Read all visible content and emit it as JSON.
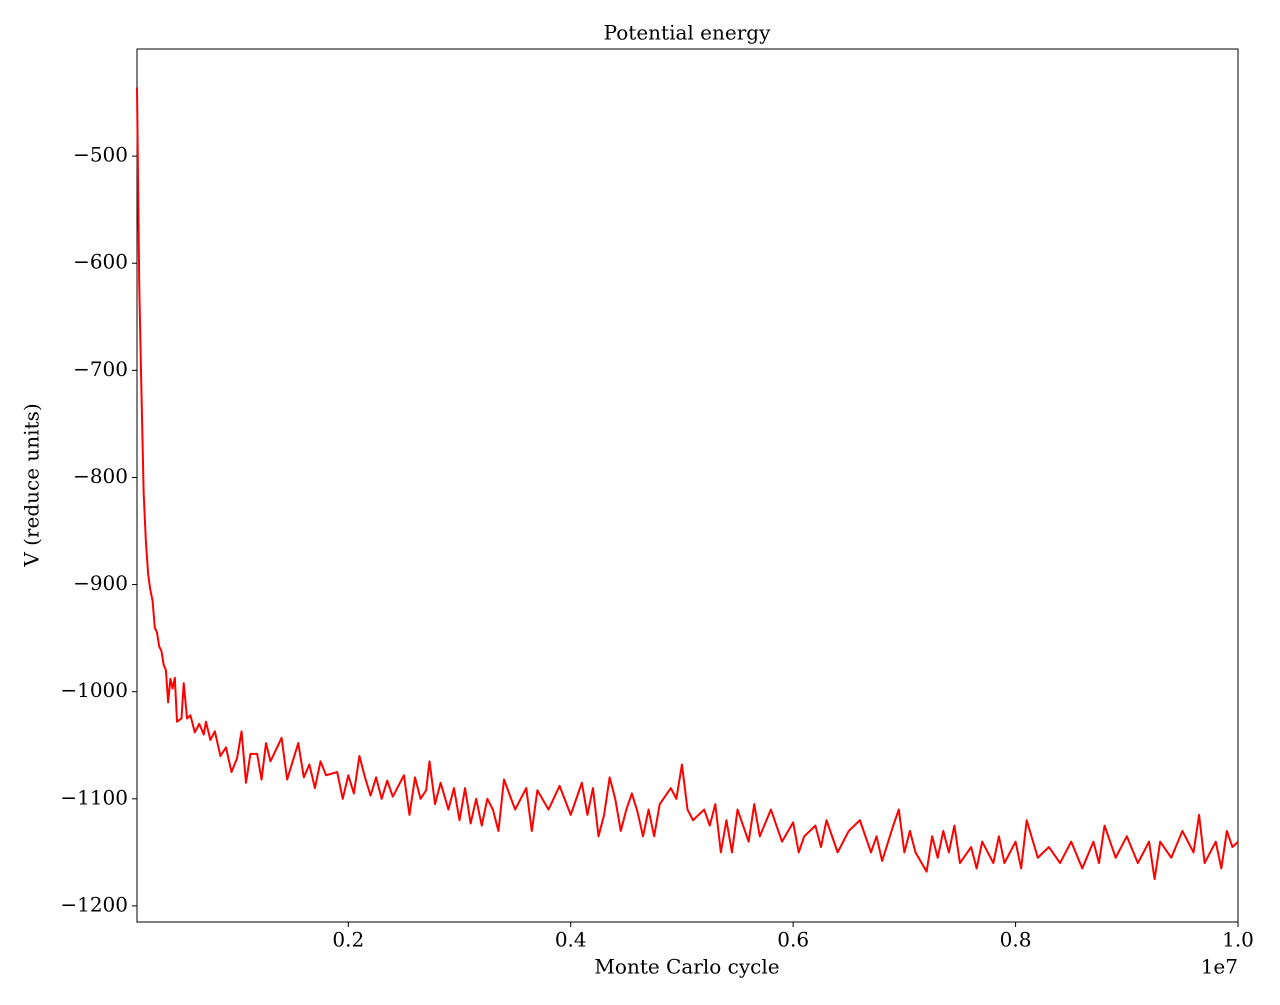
{
  "chart_data": {
    "type": "line",
    "title": "Potential energy",
    "xlabel": "Monte Carlo cycle",
    "ylabel": "V (reduce units)",
    "x_offset_label": "1e7",
    "x": [
      0.01,
      0.012,
      0.014,
      0.016,
      0.018,
      0.02,
      0.022,
      0.024,
      0.026,
      0.028,
      0.03,
      0.032,
      0.034,
      0.036,
      0.038,
      0.04,
      0.042,
      0.044,
      0.046,
      0.05,
      0.052,
      0.055,
      0.058,
      0.062,
      0.066,
      0.07,
      0.072,
      0.076,
      0.08,
      0.085,
      0.09,
      0.095,
      0.1,
      0.104,
      0.108,
      0.112,
      0.118,
      0.122,
      0.126,
      0.13,
      0.136,
      0.14,
      0.145,
      0.15,
      0.155,
      0.16,
      0.165,
      0.17,
      0.175,
      0.18,
      0.19,
      0.195,
      0.2,
      0.205,
      0.21,
      0.215,
      0.22,
      0.225,
      0.23,
      0.235,
      0.24,
      0.25,
      0.255,
      0.26,
      0.265,
      0.27,
      0.273,
      0.278,
      0.283,
      0.29,
      0.295,
      0.3,
      0.305,
      0.31,
      0.315,
      0.32,
      0.325,
      0.33,
      0.335,
      0.34,
      0.35,
      0.36,
      0.365,
      0.37,
      0.38,
      0.39,
      0.4,
      0.41,
      0.415,
      0.42,
      0.425,
      0.43,
      0.435,
      0.44,
      0.445,
      0.45,
      0.455,
      0.46,
      0.465,
      0.47,
      0.475,
      0.48,
      0.49,
      0.495,
      0.5,
      0.505,
      0.51,
      0.52,
      0.525,
      0.53,
      0.535,
      0.54,
      0.545,
      0.55,
      0.56,
      0.565,
      0.57,
      0.58,
      0.59,
      0.6,
      0.605,
      0.61,
      0.62,
      0.625,
      0.63,
      0.64,
      0.65,
      0.66,
      0.67,
      0.675,
      0.68,
      0.69,
      0.695,
      0.7,
      0.705,
      0.71,
      0.72,
      0.725,
      0.73,
      0.735,
      0.74,
      0.745,
      0.75,
      0.76,
      0.765,
      0.77,
      0.78,
      0.785,
      0.79,
      0.8,
      0.805,
      0.81,
      0.82,
      0.83,
      0.84,
      0.85,
      0.86,
      0.87,
      0.875,
      0.88,
      0.89,
      0.9,
      0.91,
      0.92,
      0.925,
      0.93,
      0.94,
      0.95,
      0.96,
      0.965,
      0.97,
      0.98,
      0.985,
      0.99,
      0.995,
      1.0
    ],
    "series": [
      {
        "name": "V",
        "color": "#ff0000",
        "values": [
          -436,
          -620,
          -720,
          -815,
          -860,
          -890,
          -905,
          -915,
          -940,
          -945,
          -958,
          -962,
          -975,
          -980,
          -1010,
          -988,
          -997,
          -987,
          -1028,
          -1025,
          -992,
          -1025,
          -1022,
          -1038,
          -1030,
          -1040,
          -1028,
          -1045,
          -1037,
          -1060,
          -1052,
          -1075,
          -1062,
          -1037,
          -1085,
          -1058,
          -1058,
          -1082,
          -1048,
          -1065,
          -1052,
          -1043,
          -1082,
          -1065,
          -1048,
          -1080,
          -1068,
          -1090,
          -1065,
          -1078,
          -1075,
          -1100,
          -1078,
          -1095,
          -1060,
          -1080,
          -1097,
          -1080,
          -1100,
          -1083,
          -1098,
          -1078,
          -1115,
          -1080,
          -1100,
          -1092,
          -1065,
          -1105,
          -1085,
          -1110,
          -1090,
          -1120,
          -1090,
          -1123,
          -1100,
          -1125,
          -1100,
          -1110,
          -1130,
          -1082,
          -1110,
          -1090,
          -1130,
          -1092,
          -1110,
          -1088,
          -1115,
          -1085,
          -1115,
          -1090,
          -1135,
          -1115,
          -1080,
          -1100,
          -1130,
          -1110,
          -1095,
          -1112,
          -1135,
          -1110,
          -1135,
          -1105,
          -1090,
          -1100,
          -1068,
          -1110,
          -1120,
          -1110,
          -1125,
          -1105,
          -1150,
          -1120,
          -1150,
          -1110,
          -1140,
          -1105,
          -1135,
          -1110,
          -1140,
          -1122,
          -1150,
          -1135,
          -1125,
          -1145,
          -1120,
          -1150,
          -1130,
          -1120,
          -1150,
          -1135,
          -1158,
          -1125,
          -1110,
          -1150,
          -1130,
          -1150,
          -1168,
          -1135,
          -1155,
          -1130,
          -1150,
          -1125,
          -1160,
          -1145,
          -1165,
          -1140,
          -1160,
          -1135,
          -1160,
          -1140,
          -1165,
          -1120,
          -1155,
          -1145,
          -1160,
          -1140,
          -1165,
          -1140,
          -1160,
          -1125,
          -1155,
          -1135,
          -1160,
          -1140,
          -1175,
          -1140,
          -1155,
          -1130,
          -1150,
          -1115,
          -1160,
          -1140,
          -1165,
          -1130,
          -1145,
          -1140
        ]
      }
    ],
    "xlim": [
      0.01,
      1.0
    ],
    "xticks": [
      0.2,
      0.4,
      0.6,
      0.8,
      {
        "value": 1.0,
        "label": "1.0"
      }
    ],
    "ylim": [
      -1215,
      -400
    ],
    "yticks": [
      {
        "value": -1200,
        "label": "−1200"
      },
      {
        "value": -1100,
        "label": "−1100"
      },
      {
        "value": -1000,
        "label": "−1000"
      },
      {
        "value": -900,
        "label": "−900"
      },
      {
        "value": -800,
        "label": "−800"
      },
      {
        "value": -700,
        "label": "−700"
      },
      {
        "value": -600,
        "label": "−600"
      },
      {
        "value": -500,
        "label": "−500"
      }
    ],
    "grid": false
  }
}
